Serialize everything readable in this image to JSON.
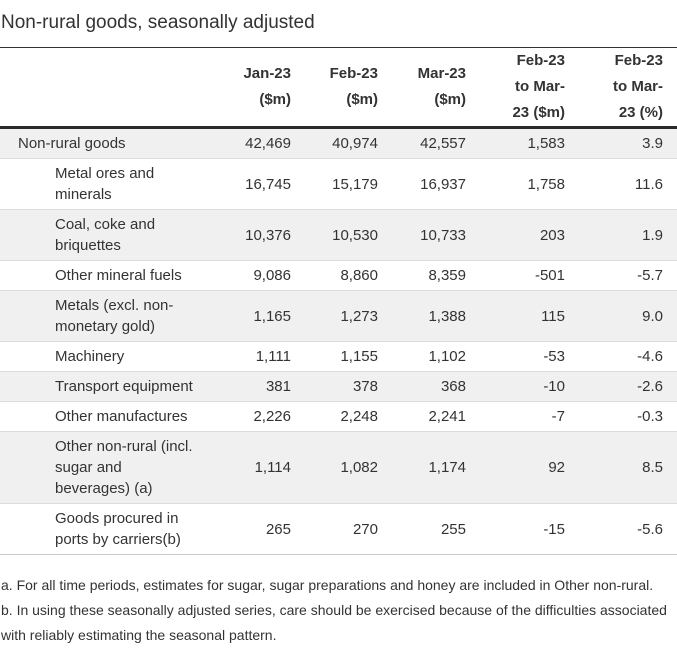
{
  "title": "Non-rural goods, seasonally adjusted",
  "table": {
    "header": {
      "columns": [
        {
          "label": "Jan-23\n($m)"
        },
        {
          "label": "Feb-23\n($m)"
        },
        {
          "label": "Mar-23\n($m)"
        },
        {
          "label": "Feb-23\nto Mar-\n23 ($m)"
        },
        {
          "label": "Feb-23\nto Mar-\n23 (%)"
        }
      ]
    },
    "rows": [
      {
        "label": "Non-rural goods",
        "level": 0,
        "values": [
          "42,469",
          "40,974",
          "42,557",
          "1,583",
          "3.9"
        ]
      },
      {
        "label": "Metal ores and minerals",
        "level": 1,
        "values": [
          "16,745",
          "15,179",
          "16,937",
          "1,758",
          "11.6"
        ]
      },
      {
        "label": "Coal, coke and briquettes",
        "level": 1,
        "values": [
          "10,376",
          "10,530",
          "10,733",
          "203",
          "1.9"
        ]
      },
      {
        "label": "Other mineral fuels",
        "level": 1,
        "values": [
          "9,086",
          "8,860",
          "8,359",
          "-501",
          "-5.7"
        ]
      },
      {
        "label": "Metals (excl. non-monetary gold)",
        "level": 1,
        "values": [
          "1,165",
          "1,273",
          "1,388",
          "115",
          "9.0"
        ]
      },
      {
        "label": "Machinery",
        "level": 1,
        "values": [
          "1,111",
          "1,155",
          "1,102",
          "-53",
          "-4.6"
        ]
      },
      {
        "label": "Transport equipment",
        "level": 1,
        "values": [
          "381",
          "378",
          "368",
          "-10",
          "-2.6"
        ]
      },
      {
        "label": "Other manufactures",
        "level": 1,
        "values": [
          "2,226",
          "2,248",
          "2,241",
          "-7",
          "-0.3"
        ]
      },
      {
        "label": "Other non-rural (incl. sugar and beverages) (a)",
        "level": 1,
        "values": [
          "1,114",
          "1,082",
          "1,174",
          "92",
          "8.5"
        ]
      },
      {
        "label": "Goods procured in ports by carriers(b)",
        "level": 1,
        "values": [
          "265",
          "270",
          "255",
          "-15",
          "-5.6"
        ]
      }
    ]
  },
  "footnotes": [
    "a. For all time periods, estimates for sugar, sugar preparations and honey are included in Other non-rural.",
    "b. In using these seasonally adjusted series, care should be exercised because of the difficulties associated with reliably estimating the seasonal pattern."
  ],
  "colors": {
    "text": "#333333",
    "row_stripe": "#f0f0f0",
    "row_divider": "#dcdcdc",
    "header_border": "#2b2b2b",
    "table_top_border": "#333333",
    "table_bottom_border": "#c9c9c9"
  },
  "chart_data": {
    "type": "table",
    "title": "Non-rural goods, seasonally adjusted",
    "columns": [
      "Jan-23 ($m)",
      "Feb-23 ($m)",
      "Mar-23 ($m)",
      "Feb-23 to Mar-23 ($m)",
      "Feb-23 to Mar-23 (%)"
    ],
    "rows": [
      {
        "label": "Non-rural goods",
        "values": [
          42469,
          40974,
          42557,
          1583,
          3.9
        ]
      },
      {
        "label": "Metal ores and minerals",
        "values": [
          16745,
          15179,
          16937,
          1758,
          11.6
        ]
      },
      {
        "label": "Coal, coke and briquettes",
        "values": [
          10376,
          10530,
          10733,
          203,
          1.9
        ]
      },
      {
        "label": "Other mineral fuels",
        "values": [
          9086,
          8860,
          8359,
          -501,
          -5.7
        ]
      },
      {
        "label": "Metals (excl. non-monetary gold)",
        "values": [
          1165,
          1273,
          1388,
          115,
          9.0
        ]
      },
      {
        "label": "Machinery",
        "values": [
          1111,
          1155,
          1102,
          -53,
          -4.6
        ]
      },
      {
        "label": "Transport equipment",
        "values": [
          381,
          378,
          368,
          -10,
          -2.6
        ]
      },
      {
        "label": "Other manufactures",
        "values": [
          2226,
          2248,
          2241,
          -7,
          -0.3
        ]
      },
      {
        "label": "Other non-rural (incl. sugar and beverages) (a)",
        "values": [
          1114,
          1082,
          1174,
          92,
          8.5
        ]
      },
      {
        "label": "Goods procured in ports by carriers(b)",
        "values": [
          265,
          270,
          255,
          -15,
          -5.6
        ]
      }
    ]
  }
}
